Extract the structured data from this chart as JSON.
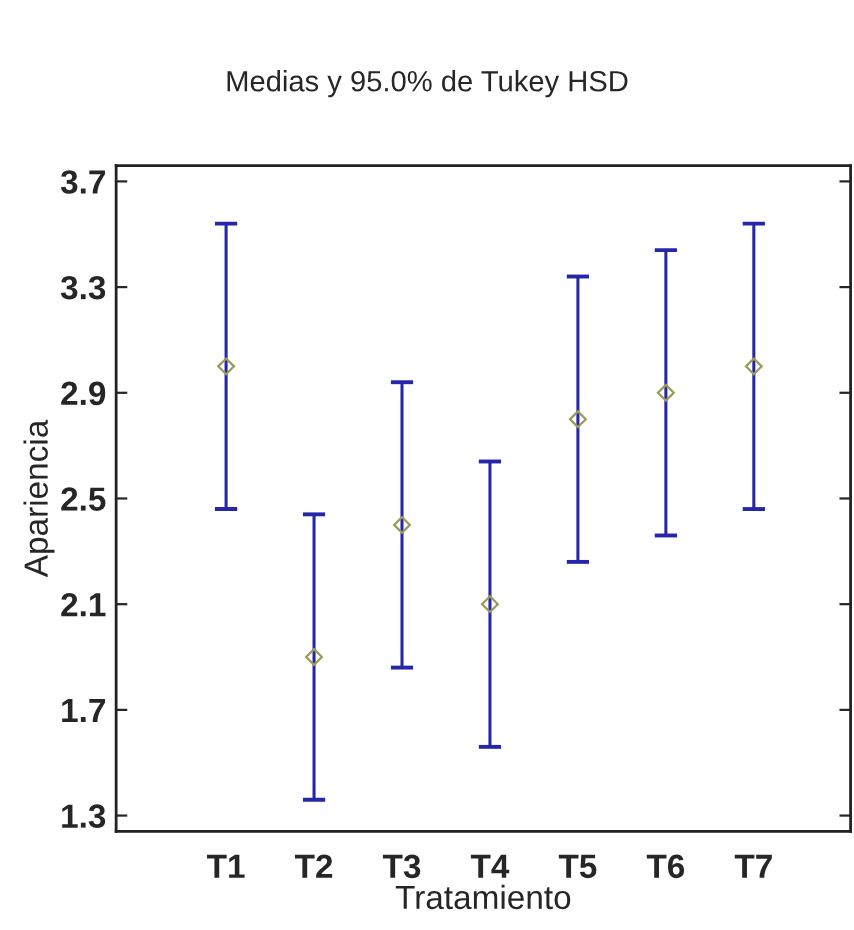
{
  "chart_data": {
    "type": "scatter",
    "title": "Medias y 95.0% de Tukey HSD",
    "xlabel": "Tratamiento",
    "ylabel": "Apariencia",
    "categories": [
      "T1",
      "T2",
      "T3",
      "T4",
      "T5",
      "T6",
      "T7"
    ],
    "series": [
      {
        "color": "#9a9a5a",
        "values": [
          3.0,
          1.9,
          2.4,
          2.1,
          2.8,
          2.9,
          3.0
        ],
        "errors": [
          0.54,
          0.54,
          0.54,
          0.54,
          0.54,
          0.54,
          0.54
        ]
      }
    ],
    "ylim": [
      1.24,
      3.76
    ],
    "yticks": [
      1.3,
      1.7,
      2.1,
      2.5,
      2.9,
      3.3,
      3.7
    ],
    "marker": "diamond",
    "grid": false,
    "legend": false
  }
}
